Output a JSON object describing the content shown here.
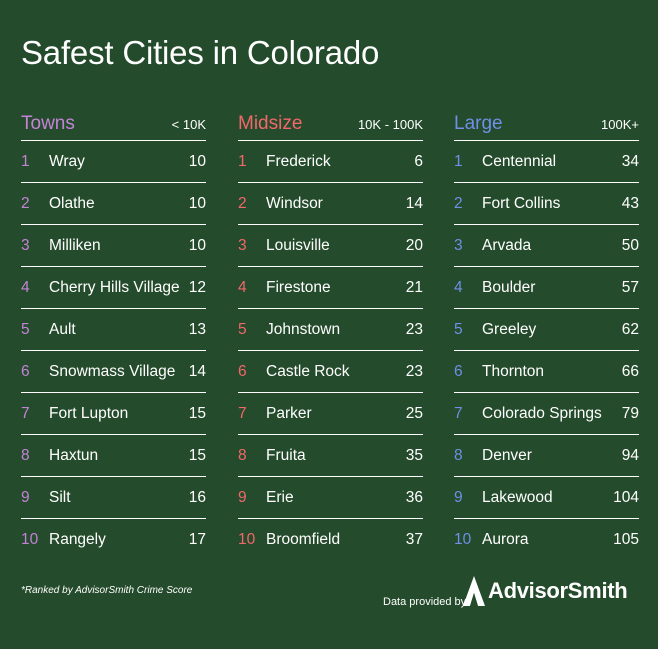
{
  "title": "Safest Cities in Colorado",
  "colors": {
    "background": "#244b2b",
    "towns": "#c483d6",
    "midsize": "#f2676a",
    "large": "#6f8fe8"
  },
  "columns": {
    "towns": {
      "name": "Towns",
      "range": "< 10K",
      "rows": [
        {
          "rank": "1",
          "city": "Wray",
          "score": "10"
        },
        {
          "rank": "2",
          "city": "Olathe",
          "score": "10"
        },
        {
          "rank": "3",
          "city": "Milliken",
          "score": "10"
        },
        {
          "rank": "4",
          "city": "Cherry Hills Village",
          "score": "12"
        },
        {
          "rank": "5",
          "city": "Ault",
          "score": "13"
        },
        {
          "rank": "6",
          "city": "Snowmass Village",
          "score": "14"
        },
        {
          "rank": "7",
          "city": "Fort Lupton",
          "score": "15"
        },
        {
          "rank": "8",
          "city": "Haxtun",
          "score": "15"
        },
        {
          "rank": "9",
          "city": "Silt",
          "score": "16"
        },
        {
          "rank": "10",
          "city": "Rangely",
          "score": "17"
        }
      ]
    },
    "midsize": {
      "name": "Midsize",
      "range": "10K - 100K",
      "rows": [
        {
          "rank": "1",
          "city": "Frederick",
          "score": "6"
        },
        {
          "rank": "2",
          "city": "Windsor",
          "score": "14"
        },
        {
          "rank": "3",
          "city": "Louisville",
          "score": "20"
        },
        {
          "rank": "4",
          "city": "Firestone",
          "score": "21"
        },
        {
          "rank": "5",
          "city": "Johnstown",
          "score": "23"
        },
        {
          "rank": "6",
          "city": "Castle Rock",
          "score": "23"
        },
        {
          "rank": "7",
          "city": "Parker",
          "score": "25"
        },
        {
          "rank": "8",
          "city": "Fruita",
          "score": "35"
        },
        {
          "rank": "9",
          "city": "Erie",
          "score": "36"
        },
        {
          "rank": "10",
          "city": "Broomfield",
          "score": "37"
        }
      ]
    },
    "large": {
      "name": "Large",
      "range": "100K+",
      "rows": [
        {
          "rank": "1",
          "city": "Centennial",
          "score": "34"
        },
        {
          "rank": "2",
          "city": "Fort Collins",
          "score": "43"
        },
        {
          "rank": "3",
          "city": "Arvada",
          "score": "50"
        },
        {
          "rank": "4",
          "city": "Boulder",
          "score": "57"
        },
        {
          "rank": "5",
          "city": "Greeley",
          "score": "62"
        },
        {
          "rank": "6",
          "city": "Thornton",
          "score": "66"
        },
        {
          "rank": "7",
          "city": "Colorado Springs",
          "score": "79"
        },
        {
          "rank": "8",
          "city": "Denver",
          "score": "94"
        },
        {
          "rank": "9",
          "city": "Lakewood",
          "score": "104"
        },
        {
          "rank": "10",
          "city": "Aurora",
          "score": "105"
        }
      ]
    }
  },
  "footer": {
    "footnote": "*Ranked by AdvisorSmith Crime Score",
    "provided_by": "Data provided by",
    "brand": "AdvisorSmith",
    "logo_icon": "advisorsmith-logo-icon"
  }
}
